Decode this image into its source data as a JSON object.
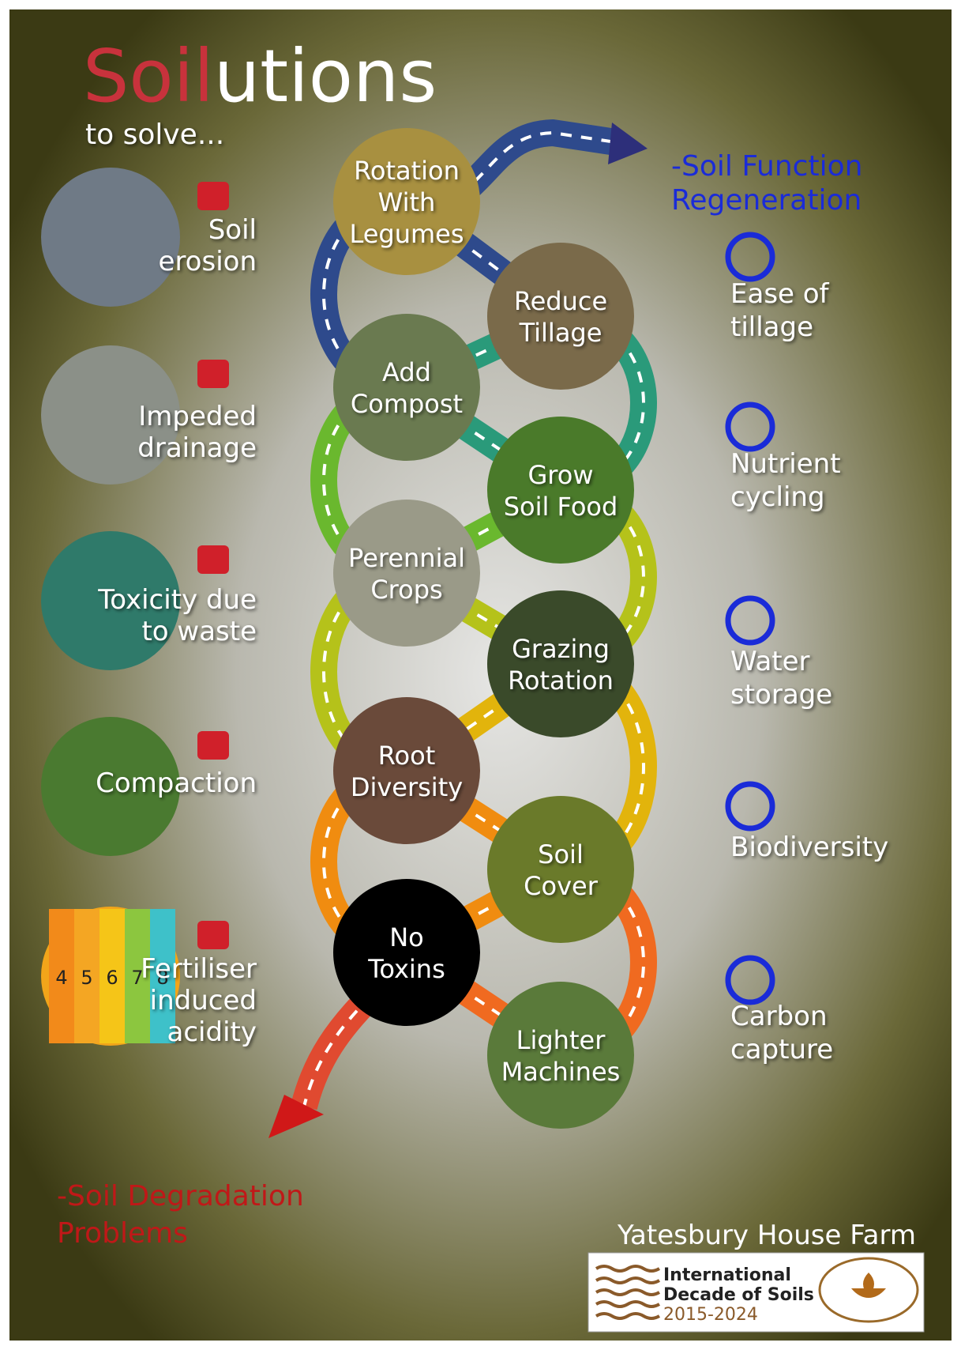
{
  "title": {
    "highlight": "Soil",
    "rest": "utions"
  },
  "subtitle": "to solve...",
  "goal_top": [
    "-Soil Function",
    "Regeneration"
  ],
  "goal_bottom": [
    "-Soil Degradation",
    "Problems"
  ],
  "problems": [
    {
      "lines": [
        "Soil",
        "erosion"
      ]
    },
    {
      "lines": [
        "Impeded",
        "drainage"
      ]
    },
    {
      "lines": [
        "Toxicity due",
        "to waste"
      ]
    },
    {
      "lines": [
        "Compaction"
      ]
    },
    {
      "lines": [
        "Fertiliser",
        "induced",
        "acidity"
      ]
    }
  ],
  "ph_scale": [
    "4",
    "5",
    "6",
    "7",
    "8"
  ],
  "solutions": [
    {
      "lines": [
        "Rotation",
        "With",
        "Legumes"
      ]
    },
    {
      "lines": [
        "Reduce",
        "Tillage"
      ]
    },
    {
      "lines": [
        "Add",
        "Compost"
      ]
    },
    {
      "lines": [
        "Grow",
        "Soil Food"
      ]
    },
    {
      "lines": [
        "Perennial",
        "Crops"
      ]
    },
    {
      "lines": [
        "Grazing",
        "Rotation"
      ]
    },
    {
      "lines": [
        "Root",
        "Diversity"
      ]
    },
    {
      "lines": [
        "Soil",
        "Cover"
      ]
    },
    {
      "lines": [
        "No",
        "Toxins"
      ]
    },
    {
      "lines": [
        "Lighter",
        "Machines"
      ]
    }
  ],
  "benefits": [
    {
      "lines": [
        "Ease of",
        "tillage"
      ]
    },
    {
      "lines": [
        "Nutrient",
        "cycling"
      ]
    },
    {
      "lines": [
        "Water",
        "storage"
      ]
    },
    {
      "lines": [
        "Biodiversity"
      ]
    },
    {
      "lines": [
        "Carbon",
        "capture"
      ]
    }
  ],
  "farm": "Yatesbury House Farm",
  "logo": [
    "International",
    "Decade of Soils",
    "2015-2024"
  ]
}
